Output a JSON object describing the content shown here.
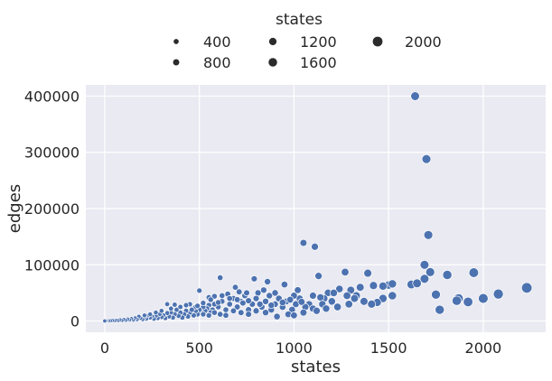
{
  "chart_data": {
    "type": "scatter",
    "title": "",
    "xlabel": "states",
    "ylabel": "edges",
    "xlim": [
      -100,
      2330
    ],
    "ylim": [
      -20000,
      420000
    ],
    "xticks": [
      0,
      500,
      1000,
      1500,
      2000
    ],
    "yticks": [
      0,
      100000,
      200000,
      300000,
      400000
    ],
    "grid": true,
    "colors": {
      "background": "#eaeaf2",
      "grid": "#ffffff",
      "marker": "#4c72b0",
      "marker_edge": "#ffffff"
    },
    "legend": {
      "title": "states",
      "placement": "top-center",
      "entries": [
        {
          "label": "400",
          "size": 400
        },
        {
          "label": "800",
          "size": 800
        },
        {
          "label": "1200",
          "size": 1200
        },
        {
          "label": "1600",
          "size": 1600
        },
        {
          "label": "2000",
          "size": 2000
        }
      ]
    },
    "series": [
      {
        "points": [
          [
            1640,
            400000
          ],
          [
            1700,
            288000
          ],
          [
            1710,
            153000
          ],
          [
            1050,
            139000
          ],
          [
            1110,
            132000
          ],
          [
            1690,
            100000
          ],
          [
            1720,
            87000
          ],
          [
            1950,
            86000
          ],
          [
            1810,
            82000
          ],
          [
            1270,
            87000
          ],
          [
            1390,
            85000
          ],
          [
            1130,
            80000
          ],
          [
            1690,
            75000
          ],
          [
            1620,
            65000
          ],
          [
            1650,
            67000
          ],
          [
            1500,
            64000
          ],
          [
            1520,
            66000
          ],
          [
            1420,
            63000
          ],
          [
            1470,
            62000
          ],
          [
            1350,
            60000
          ],
          [
            1240,
            57000
          ],
          [
            1300,
            55000
          ],
          [
            2230,
            59000
          ],
          [
            2080,
            48000
          ],
          [
            1750,
            47000
          ],
          [
            1520,
            45000
          ],
          [
            1470,
            40000
          ],
          [
            1440,
            33000
          ],
          [
            1410,
            30000
          ],
          [
            1370,
            35000
          ],
          [
            1330,
            45000
          ],
          [
            1320,
            40000
          ],
          [
            1290,
            30000
          ],
          [
            1280,
            45000
          ],
          [
            1180,
            50000
          ],
          [
            1160,
            40000
          ],
          [
            1230,
            25000
          ],
          [
            2000,
            40000
          ],
          [
            1920,
            34000
          ],
          [
            1870,
            40000
          ],
          [
            1860,
            36000
          ],
          [
            1770,
            20000
          ],
          [
            1210,
            50000
          ],
          [
            1200,
            35000
          ],
          [
            1100,
            45000
          ],
          [
            1080,
            30000
          ],
          [
            1060,
            25000
          ],
          [
            1030,
            40000
          ],
          [
            1010,
            30000
          ],
          [
            990,
            20000
          ],
          [
            960,
            35000
          ],
          [
            940,
            25000
          ],
          [
            920,
            40000
          ],
          [
            900,
            30000
          ],
          [
            880,
            20000
          ],
          [
            870,
            45000
          ],
          [
            850,
            35000
          ],
          [
            830,
            25000
          ],
          [
            810,
            50000
          ],
          [
            800,
            40000
          ],
          [
            780,
            30000
          ],
          [
            760,
            20000
          ],
          [
            740,
            45000
          ],
          [
            720,
            35000
          ],
          [
            700,
            25000
          ],
          [
            680,
            40000
          ],
          [
            660,
            30000
          ],
          [
            640,
            20000
          ],
          [
            620,
            35000
          ],
          [
            600,
            25000
          ],
          [
            580,
            30000
          ],
          [
            570,
            20000
          ],
          [
            560,
            15000
          ],
          [
            550,
            28000
          ],
          [
            540,
            22000
          ],
          [
            530,
            18000
          ],
          [
            520,
            25000
          ],
          [
            510,
            15000
          ],
          [
            500,
            20000
          ],
          [
            490,
            12000
          ],
          [
            480,
            18000
          ],
          [
            470,
            10000
          ],
          [
            460,
            22000
          ],
          [
            450,
            15000
          ],
          [
            440,
            8000
          ],
          [
            430,
            18000
          ],
          [
            420,
            12000
          ],
          [
            410,
            6000
          ],
          [
            400,
            15000
          ],
          [
            390,
            9000
          ],
          [
            380,
            20000
          ],
          [
            370,
            12000
          ],
          [
            360,
            6000
          ],
          [
            350,
            15000
          ],
          [
            340,
            8000
          ],
          [
            330,
            14000
          ],
          [
            320,
            5000
          ],
          [
            310,
            10000
          ],
          [
            300,
            7000
          ],
          [
            290,
            12000
          ],
          [
            280,
            5000
          ],
          [
            270,
            9000
          ],
          [
            260,
            4000
          ],
          [
            250,
            8000
          ],
          [
            240,
            6000
          ],
          [
            230,
            10000
          ],
          [
            220,
            4000
          ],
          [
            210,
            7000
          ],
          [
            200,
            3000
          ],
          [
            190,
            5000
          ],
          [
            180,
            8000
          ],
          [
            170,
            3000
          ],
          [
            160,
            5000
          ],
          [
            150,
            2000
          ],
          [
            140,
            4000
          ],
          [
            130,
            2000
          ],
          [
            120,
            3000
          ],
          [
            110,
            1500
          ],
          [
            100,
            2500
          ],
          [
            90,
            1000
          ],
          [
            80,
            2000
          ],
          [
            70,
            800
          ],
          [
            60,
            1200
          ],
          [
            50,
            500
          ],
          [
            40,
            900
          ],
          [
            30,
            400
          ],
          [
            20,
            300
          ],
          [
            10,
            200
          ],
          [
            5,
            100
          ],
          [
            0,
            0
          ],
          [
            330,
            30000
          ],
          [
            370,
            29000
          ],
          [
            500,
            54000
          ],
          [
            550,
            42000
          ],
          [
            580,
            44000
          ],
          [
            610,
            77000
          ],
          [
            690,
            60000
          ],
          [
            750,
            50000
          ],
          [
            790,
            75000
          ],
          [
            860,
            70000
          ],
          [
            950,
            65000
          ],
          [
            1000,
            45000
          ],
          [
            1020,
            55000
          ],
          [
            1140,
            42000
          ],
          [
            840,
            55000
          ],
          [
            900,
            50000
          ],
          [
            710,
            52000
          ],
          [
            650,
            48000
          ],
          [
            620,
            45000
          ],
          [
            660,
            40000
          ],
          [
            700,
            38000
          ],
          [
            730,
            32000
          ],
          [
            760,
            36000
          ],
          [
            820,
            30000
          ],
          [
            880,
            28000
          ],
          [
            940,
            33000
          ],
          [
            980,
            38000
          ],
          [
            1040,
            34000
          ],
          [
            1100,
            22000
          ],
          [
            1150,
            30000
          ],
          [
            450,
            30000
          ],
          [
            480,
            25000
          ],
          [
            520,
            32000
          ],
          [
            560,
            38000
          ],
          [
            600,
            33000
          ],
          [
            350,
            22000
          ],
          [
            300,
            18000
          ],
          [
            270,
            15000
          ],
          [
            240,
            12000
          ],
          [
            210,
            10000
          ],
          [
            400,
            25000
          ],
          [
            430,
            28000
          ],
          [
            460,
            20000
          ],
          [
            490,
            27000
          ],
          [
            520,
            12000
          ],
          [
            550,
            10000
          ],
          [
            580,
            15000
          ],
          [
            610,
            12000
          ],
          [
            640,
            10000
          ],
          [
            680,
            18000
          ],
          [
            720,
            15000
          ],
          [
            760,
            12000
          ],
          [
            800,
            18000
          ],
          [
            850,
            15000
          ],
          [
            910,
            8000
          ],
          [
            970,
            12000
          ],
          [
            1000,
            10000
          ],
          [
            1050,
            15000
          ],
          [
            1120,
            18000
          ],
          [
            1170,
            22000
          ]
        ]
      }
    ]
  }
}
